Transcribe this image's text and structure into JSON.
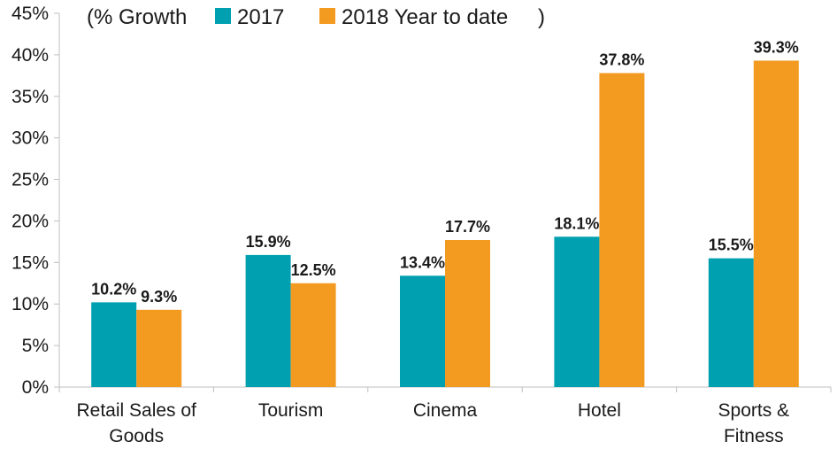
{
  "chart_data": {
    "type": "bar",
    "legend_prefix": "(% Growth",
    "legend_suffix": ")",
    "categories": [
      [
        "Retail Sales of",
        "Goods"
      ],
      [
        "Tourism"
      ],
      [
        "Cinema"
      ],
      [
        "Hotel"
      ],
      [
        "Sports &",
        "Fitness"
      ]
    ],
    "series": [
      {
        "name": "2017",
        "color": "#00A0B0",
        "values": [
          10.2,
          15.9,
          13.4,
          18.1,
          15.5
        ],
        "labels": [
          "10.2%",
          "15.9%",
          "13.4%",
          "18.1%",
          "15.5%"
        ]
      },
      {
        "name": "2018 Year to date",
        "color": "#F39A21",
        "values": [
          9.3,
          12.5,
          17.7,
          37.8,
          39.3
        ],
        "labels": [
          "9.3%",
          "12.5%",
          "17.7%",
          "37.8%",
          "39.3%"
        ]
      }
    ],
    "ylim": [
      0,
      45
    ],
    "yticks": [
      0,
      5,
      10,
      15,
      20,
      25,
      30,
      35,
      40,
      45
    ],
    "ytick_labels": [
      "0%",
      "5%",
      "10%",
      "15%",
      "20%",
      "25%",
      "30%",
      "35%",
      "40%",
      "45%"
    ],
    "legend_position": "top",
    "grid": false
  }
}
